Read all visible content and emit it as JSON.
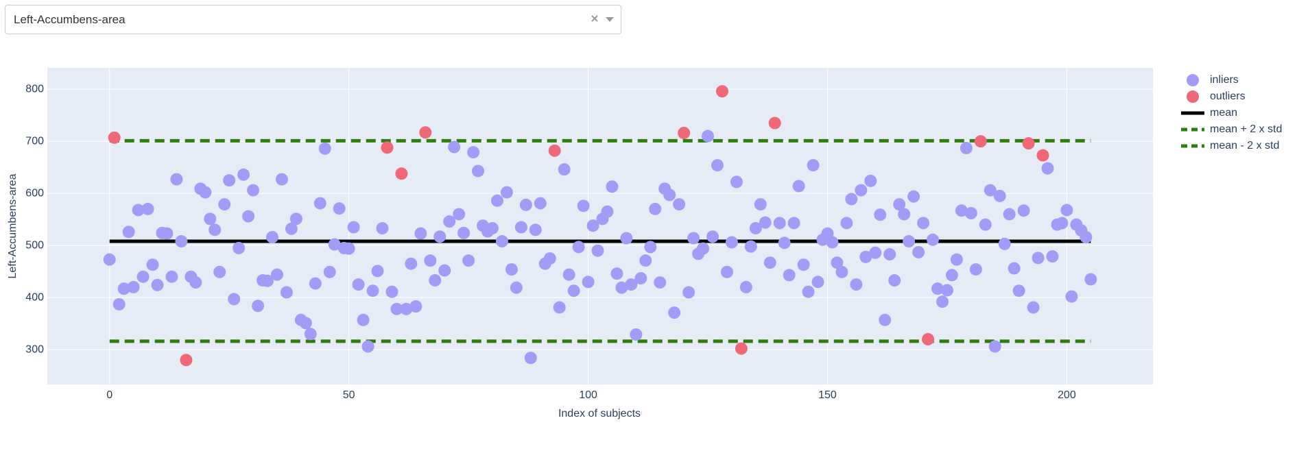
{
  "dropdown": {
    "value": "Left-Accumbens-area"
  },
  "chart_data": {
    "type": "scatter",
    "xlabel": "Index of subjects",
    "ylabel": "Left-Accumbens-area",
    "xlim": [
      -13,
      218
    ],
    "ylim": [
      233,
      841
    ],
    "xticks": [
      0,
      50,
      100,
      150,
      200
    ],
    "yticks": [
      300,
      400,
      500,
      600,
      700,
      800
    ],
    "grid": true,
    "legend": "right",
    "series": [
      {
        "name": "inliers",
        "color": "#a39cf6",
        "mode": "markers",
        "x": [
          0,
          2,
          3,
          4,
          5,
          6,
          7,
          8,
          9,
          10,
          11,
          12,
          13,
          14,
          15,
          17,
          18,
          19,
          20,
          21,
          22,
          23,
          24,
          25,
          26,
          27,
          28,
          29,
          30,
          31,
          32,
          33,
          34,
          35,
          36,
          37,
          38,
          39,
          40,
          41,
          42,
          43,
          44,
          45,
          46,
          47,
          48,
          49,
          50,
          51,
          52,
          53,
          54,
          55,
          56,
          57,
          59,
          60,
          62,
          63,
          64,
          65,
          67,
          68,
          69,
          70,
          71,
          72,
          73,
          74,
          75,
          76,
          77,
          78,
          79,
          80,
          81,
          82,
          83,
          84,
          85,
          86,
          87,
          88,
          89,
          90,
          91,
          92,
          94,
          95,
          96,
          97,
          98,
          99,
          100,
          101,
          102,
          103,
          104,
          105,
          106,
          107,
          108,
          109,
          110,
          111,
          112,
          113,
          114,
          115,
          116,
          117,
          118,
          119,
          121,
          122,
          123,
          124,
          125,
          126,
          127,
          129,
          130,
          131,
          133,
          134,
          135,
          136,
          137,
          138,
          140,
          141,
          142,
          143,
          144,
          145,
          146,
          147,
          148,
          149,
          150,
          151,
          152,
          153,
          154,
          155,
          156,
          157,
          158,
          159,
          160,
          161,
          162,
          163,
          164,
          165,
          166,
          167,
          168,
          169,
          170,
          172,
          173,
          174,
          175,
          176,
          177,
          178,
          179,
          180,
          181,
          183,
          184,
          185,
          186,
          187,
          188,
          189,
          190,
          191,
          193,
          194,
          196,
          197,
          198,
          199,
          200,
          201,
          202,
          203,
          204,
          205
        ],
        "values": [
          473,
          387,
          417,
          526,
          420,
          568,
          440,
          570,
          463,
          424,
          524,
          523,
          440,
          627,
          508,
          440,
          429,
          609,
          602,
          551,
          530,
          449,
          579,
          625,
          397,
          495,
          636,
          556,
          606,
          384,
          433,
          432,
          516,
          444,
          627,
          410,
          532,
          551,
          357,
          351,
          330,
          427,
          581,
          686,
          449,
          502,
          571,
          495,
          494,
          535,
          425,
          357,
          306,
          413,
          451,
          533,
          411,
          378,
          378,
          465,
          383,
          523,
          471,
          433,
          517,
          452,
          546,
          689,
          560,
          524,
          471,
          679,
          643,
          538,
          527,
          533,
          586,
          508,
          602,
          454,
          419,
          535,
          578,
          284,
          530,
          581,
          465,
          475,
          381,
          646,
          444,
          413,
          497,
          576,
          430,
          538,
          490,
          551,
          565,
          613,
          446,
          419,
          514,
          425,
          329,
          437,
          471,
          497,
          570,
          429,
          609,
          597,
          371,
          579,
          410,
          514,
          484,
          494,
          710,
          517,
          654,
          449,
          506,
          622,
          420,
          498,
          533,
          579,
          544,
          467,
          543,
          505,
          443,
          543,
          614,
          463,
          411,
          654,
          430,
          511,
          523,
          506,
          467,
          449,
          543,
          589,
          425,
          606,
          478,
          624,
          486,
          559,
          357,
          483,
          433,
          579,
          560,
          508,
          594,
          487,
          543,
          511,
          417,
          392,
          414,
          443,
          473,
          567,
          687,
          562,
          454,
          540,
          606,
          306,
          595,
          503,
          560,
          456,
          413,
          567,
          381,
          476,
          648,
          479,
          540,
          543,
          568,
          402,
          540,
          529,
          516,
          435
        ]
      },
      {
        "name": "outliers",
        "color": "#ee6877",
        "mode": "markers",
        "x": [
          1,
          16,
          58,
          61,
          66,
          93,
          120,
          128,
          132,
          139,
          171,
          182,
          192,
          195
        ],
        "values": [
          707,
          280,
          688,
          638,
          717,
          682,
          716,
          796,
          302,
          735,
          320,
          700,
          696,
          673
        ]
      },
      {
        "name": "mean",
        "color": "#000000",
        "mode": "lines",
        "dash": false,
        "x": [
          0,
          205
        ],
        "values": [
          508,
          508
        ]
      },
      {
        "name": "mean + 2 x std",
        "color": "#2f7d0c",
        "mode": "lines",
        "dash": true,
        "x": [
          0,
          205
        ],
        "values": [
          701,
          701
        ]
      },
      {
        "name": "mean - 2 x std",
        "color": "#2f7d0c",
        "mode": "lines",
        "dash": true,
        "x": [
          0,
          205
        ],
        "values": [
          316,
          316
        ]
      }
    ]
  }
}
